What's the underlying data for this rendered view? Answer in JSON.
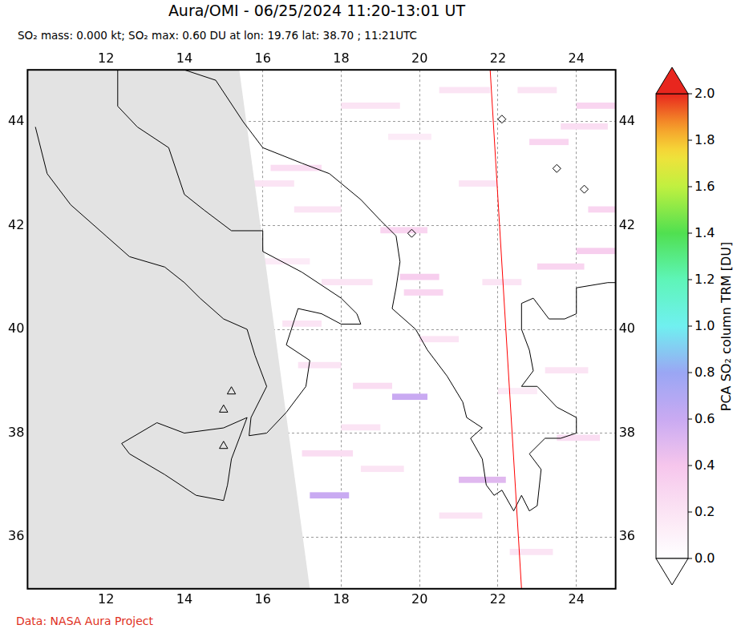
{
  "chart_data": {
    "type": "map",
    "title": "Aura/OMI - 06/25/2024 11:20-13:01 UT",
    "subtitle": "SO₂ mass: 0.000 kt; SO₂ max: 0.60 DU at lon: 19.76 lat: 38.70 ; 11:21UTC",
    "source": "Data: NASA Aura Project",
    "xlim": [
      10,
      25
    ],
    "xticks": [
      12,
      14,
      16,
      18,
      20,
      22,
      24
    ],
    "ylim": [
      35,
      45
    ],
    "yticks": [
      36,
      38,
      40,
      42,
      44
    ],
    "grid": true,
    "colorbar": {
      "label": "PCA SO₂ column TRM [DU]",
      "range": [
        0,
        2
      ],
      "ticks": [
        {
          "value": 0,
          "label": "0.0"
        },
        {
          "value": 0.2,
          "label": "0.2"
        },
        {
          "value": 0.4,
          "label": "0.4"
        },
        {
          "value": 0.6,
          "label": "0.6"
        },
        {
          "value": 0.8,
          "label": "0.8"
        },
        {
          "value": 1,
          "label": "1.0"
        },
        {
          "value": 1.2,
          "label": "1.2"
        },
        {
          "value": 1.4,
          "label": "1.4"
        },
        {
          "value": 1.6,
          "label": "1.6"
        },
        {
          "value": 1.8,
          "label": "1.8"
        },
        {
          "value": 2,
          "label": "2.0"
        }
      ]
    },
    "no_data_region": [
      [
        10,
        45
      ],
      [
        15.4,
        45
      ],
      [
        17.2,
        35
      ],
      [
        10,
        35
      ]
    ],
    "orbit_track": {
      "points": [
        [
          21.8,
          45
        ],
        [
          22.6,
          35
        ]
      ],
      "color": "#ff0000"
    },
    "volcanoes": [
      [
        15.2,
        38.8
      ],
      [
        15.0,
        38.45
      ],
      [
        15.0,
        37.75
      ]
    ],
    "markers": [
      [
        22.1,
        44.05
      ],
      [
        23.5,
        43.1
      ],
      [
        24.2,
        42.7
      ],
      [
        19.8,
        41.85
      ]
    ],
    "so2_pixels": [
      {
        "lon": [
          16.2,
          17.5
        ],
        "lat": [
          43.05,
          43.17
        ],
        "value": 0.25
      },
      {
        "lon": [
          18.0,
          19.5
        ],
        "lat": [
          44.25,
          44.37
        ],
        "value": 0.2
      },
      {
        "lon": [
          20.5,
          21.8
        ],
        "lat": [
          44.55,
          44.67
        ],
        "value": 0.2
      },
      {
        "lon": [
          19.2,
          20.3
        ],
        "lat": [
          43.65,
          43.77
        ],
        "value": 0.15
      },
      {
        "lon": [
          16.8,
          18.0
        ],
        "lat": [
          42.25,
          42.37
        ],
        "value": 0.2
      },
      {
        "lon": [
          19.0,
          20.2
        ],
        "lat": [
          41.85,
          41.97
        ],
        "value": 0.3
      },
      {
        "lon": [
          19.5,
          20.5
        ],
        "lat": [
          40.95,
          41.07
        ],
        "value": 0.35
      },
      {
        "lon": [
          19.6,
          20.6
        ],
        "lat": [
          40.65,
          40.77
        ],
        "value": 0.3
      },
      {
        "lon": [
          16.0,
          17.2
        ],
        "lat": [
          41.25,
          41.37
        ],
        "value": 0.15
      },
      {
        "lon": [
          17.5,
          18.8
        ],
        "lat": [
          40.85,
          40.97
        ],
        "value": 0.2
      },
      {
        "lon": [
          16.9,
          18.0
        ],
        "lat": [
          39.25,
          39.37
        ],
        "value": 0.2
      },
      {
        "lon": [
          18.3,
          19.3
        ],
        "lat": [
          38.85,
          38.97
        ],
        "value": 0.25
      },
      {
        "lon": [
          19.3,
          20.2
        ],
        "lat": [
          38.64,
          38.76
        ],
        "value": 0.6
      },
      {
        "lon": [
          17.2,
          18.2
        ],
        "lat": [
          36.74,
          36.86
        ],
        "value": 0.6
      },
      {
        "lon": [
          21.0,
          22.2
        ],
        "lat": [
          37.04,
          37.16
        ],
        "value": 0.5
      },
      {
        "lon": [
          17.0,
          18.3
        ],
        "lat": [
          37.55,
          37.67
        ],
        "value": 0.25
      },
      {
        "lon": [
          18.5,
          19.6
        ],
        "lat": [
          37.25,
          37.37
        ],
        "value": 0.2
      },
      {
        "lon": [
          20.5,
          21.6
        ],
        "lat": [
          36.35,
          36.47
        ],
        "value": 0.2
      },
      {
        "lon": [
          22.3,
          23.4
        ],
        "lat": [
          35.65,
          35.77
        ],
        "value": 0.2
      },
      {
        "lon": [
          23.0,
          24.2
        ],
        "lat": [
          41.15,
          41.27
        ],
        "value": 0.3
      },
      {
        "lon": [
          24.0,
          25.0
        ],
        "lat": [
          41.45,
          41.57
        ],
        "value": 0.35
      },
      {
        "lon": [
          22.8,
          23.8
        ],
        "lat": [
          43.55,
          43.67
        ],
        "value": 0.3
      },
      {
        "lon": [
          23.6,
          24.8
        ],
        "lat": [
          43.85,
          43.97
        ],
        "value": 0.25
      },
      {
        "lon": [
          24.0,
          25.0
        ],
        "lat": [
          44.25,
          44.37
        ],
        "value": 0.3
      },
      {
        "lon": [
          22.5,
          23.5
        ],
        "lat": [
          44.55,
          44.67
        ],
        "value": 0.2
      },
      {
        "lon": [
          21.0,
          22.0
        ],
        "lat": [
          42.75,
          42.87
        ],
        "value": 0.2
      },
      {
        "lon": [
          20.0,
          21.0
        ],
        "lat": [
          39.75,
          39.87
        ],
        "value": 0.2
      },
      {
        "lon": [
          18.0,
          19.0
        ],
        "lat": [
          38.05,
          38.17
        ],
        "value": 0.2
      },
      {
        "lon": [
          16.5,
          17.5
        ],
        "lat": [
          40.05,
          40.17
        ],
        "value": 0.2
      },
      {
        "lon": [
          15.6,
          16.8
        ],
        "lat": [
          42.75,
          42.87
        ],
        "value": 0.2
      },
      {
        "lon": [
          23.2,
          24.3
        ],
        "lat": [
          39.15,
          39.27
        ],
        "value": 0.2
      },
      {
        "lon": [
          23.5,
          24.6
        ],
        "lat": [
          37.85,
          37.97
        ],
        "value": 0.25
      },
      {
        "lon": [
          21.6,
          22.6
        ],
        "lat": [
          40.85,
          40.97
        ],
        "value": 0.2
      },
      {
        "lon": [
          24.3,
          25.0
        ],
        "lat": [
          42.25,
          42.37
        ],
        "value": 0.3
      },
      {
        "lon": [
          22.0,
          23.0
        ],
        "lat": [
          38.75,
          38.87
        ],
        "value": 0.15
      }
    ],
    "coastlines": [
      [
        [
          10.2,
          43.9
        ],
        [
          10.5,
          43.0
        ],
        [
          11.1,
          42.4
        ],
        [
          12.0,
          41.8
        ],
        [
          12.6,
          41.4
        ],
        [
          13.5,
          41.2
        ],
        [
          14.0,
          40.9
        ],
        [
          14.4,
          40.6
        ],
        [
          15.0,
          40.2
        ],
        [
          15.6,
          40.0
        ],
        [
          15.8,
          39.5
        ],
        [
          16.1,
          38.9
        ],
        [
          15.7,
          38.3
        ],
        [
          15.65,
          37.95
        ],
        [
          16.1,
          38.0
        ],
        [
          16.6,
          38.4
        ],
        [
          17.1,
          38.9
        ],
        [
          17.2,
          39.4
        ],
        [
          16.6,
          39.7
        ],
        [
          16.9,
          40.4
        ],
        [
          17.5,
          40.3
        ],
        [
          18.0,
          40.1
        ],
        [
          18.5,
          40.1
        ],
        [
          18.4,
          40.3
        ],
        [
          18.0,
          40.6
        ],
        [
          17.0,
          41.1
        ],
        [
          16.0,
          41.5
        ],
        [
          16.0,
          41.9
        ],
        [
          15.2,
          41.9
        ],
        [
          14.5,
          42.3
        ],
        [
          14.0,
          42.6
        ],
        [
          13.6,
          43.5
        ],
        [
          12.8,
          43.9
        ],
        [
          12.3,
          44.3
        ],
        [
          12.3,
          45.0
        ]
      ],
      [
        [
          12.4,
          37.8
        ],
        [
          13.3,
          38.2
        ],
        [
          14.0,
          38.0
        ],
        [
          15.0,
          38.1
        ],
        [
          15.6,
          38.3
        ],
        [
          15.2,
          37.5
        ],
        [
          15.1,
          37.0
        ],
        [
          15.0,
          36.7
        ],
        [
          14.3,
          36.8
        ],
        [
          13.5,
          37.2
        ],
        [
          12.6,
          37.6
        ],
        [
          12.4,
          37.8
        ]
      ],
      [
        [
          14.0,
          45.0
        ],
        [
          14.8,
          44.8
        ],
        [
          15.5,
          44.0
        ],
        [
          16.0,
          43.5
        ],
        [
          17.0,
          43.2
        ],
        [
          17.7,
          43.0
        ],
        [
          18.5,
          42.5
        ],
        [
          19.0,
          42.1
        ],
        [
          19.4,
          41.8
        ],
        [
          19.5,
          41.3
        ],
        [
          19.4,
          40.8
        ],
        [
          19.3,
          40.4
        ],
        [
          19.9,
          40.0
        ],
        [
          20.2,
          39.6
        ],
        [
          20.7,
          39.1
        ],
        [
          21.1,
          38.6
        ],
        [
          21.2,
          38.3
        ],
        [
          21.6,
          38.1
        ],
        [
          21.3,
          37.9
        ],
        [
          21.6,
          37.5
        ],
        [
          21.7,
          37.0
        ],
        [
          21.9,
          36.8
        ],
        [
          22.1,
          36.9
        ],
        [
          22.4,
          36.5
        ],
        [
          22.6,
          36.8
        ],
        [
          22.8,
          36.5
        ],
        [
          23.0,
          36.6
        ],
        [
          23.1,
          37.3
        ],
        [
          22.8,
          37.6
        ],
        [
          23.2,
          37.9
        ],
        [
          23.6,
          37.9
        ],
        [
          24.0,
          38.0
        ],
        [
          24.0,
          38.3
        ],
        [
          23.5,
          38.5
        ],
        [
          23.0,
          38.9
        ],
        [
          22.6,
          38.9
        ],
        [
          22.9,
          39.2
        ],
        [
          22.8,
          39.6
        ],
        [
          22.6,
          40.0
        ],
        [
          22.6,
          40.5
        ],
        [
          22.9,
          40.6
        ],
        [
          23.3,
          40.2
        ],
        [
          23.7,
          40.2
        ],
        [
          24.0,
          40.3
        ],
        [
          24.0,
          40.8
        ],
        [
          24.8,
          40.9
        ],
        [
          25.0,
          40.9
        ]
      ]
    ]
  }
}
